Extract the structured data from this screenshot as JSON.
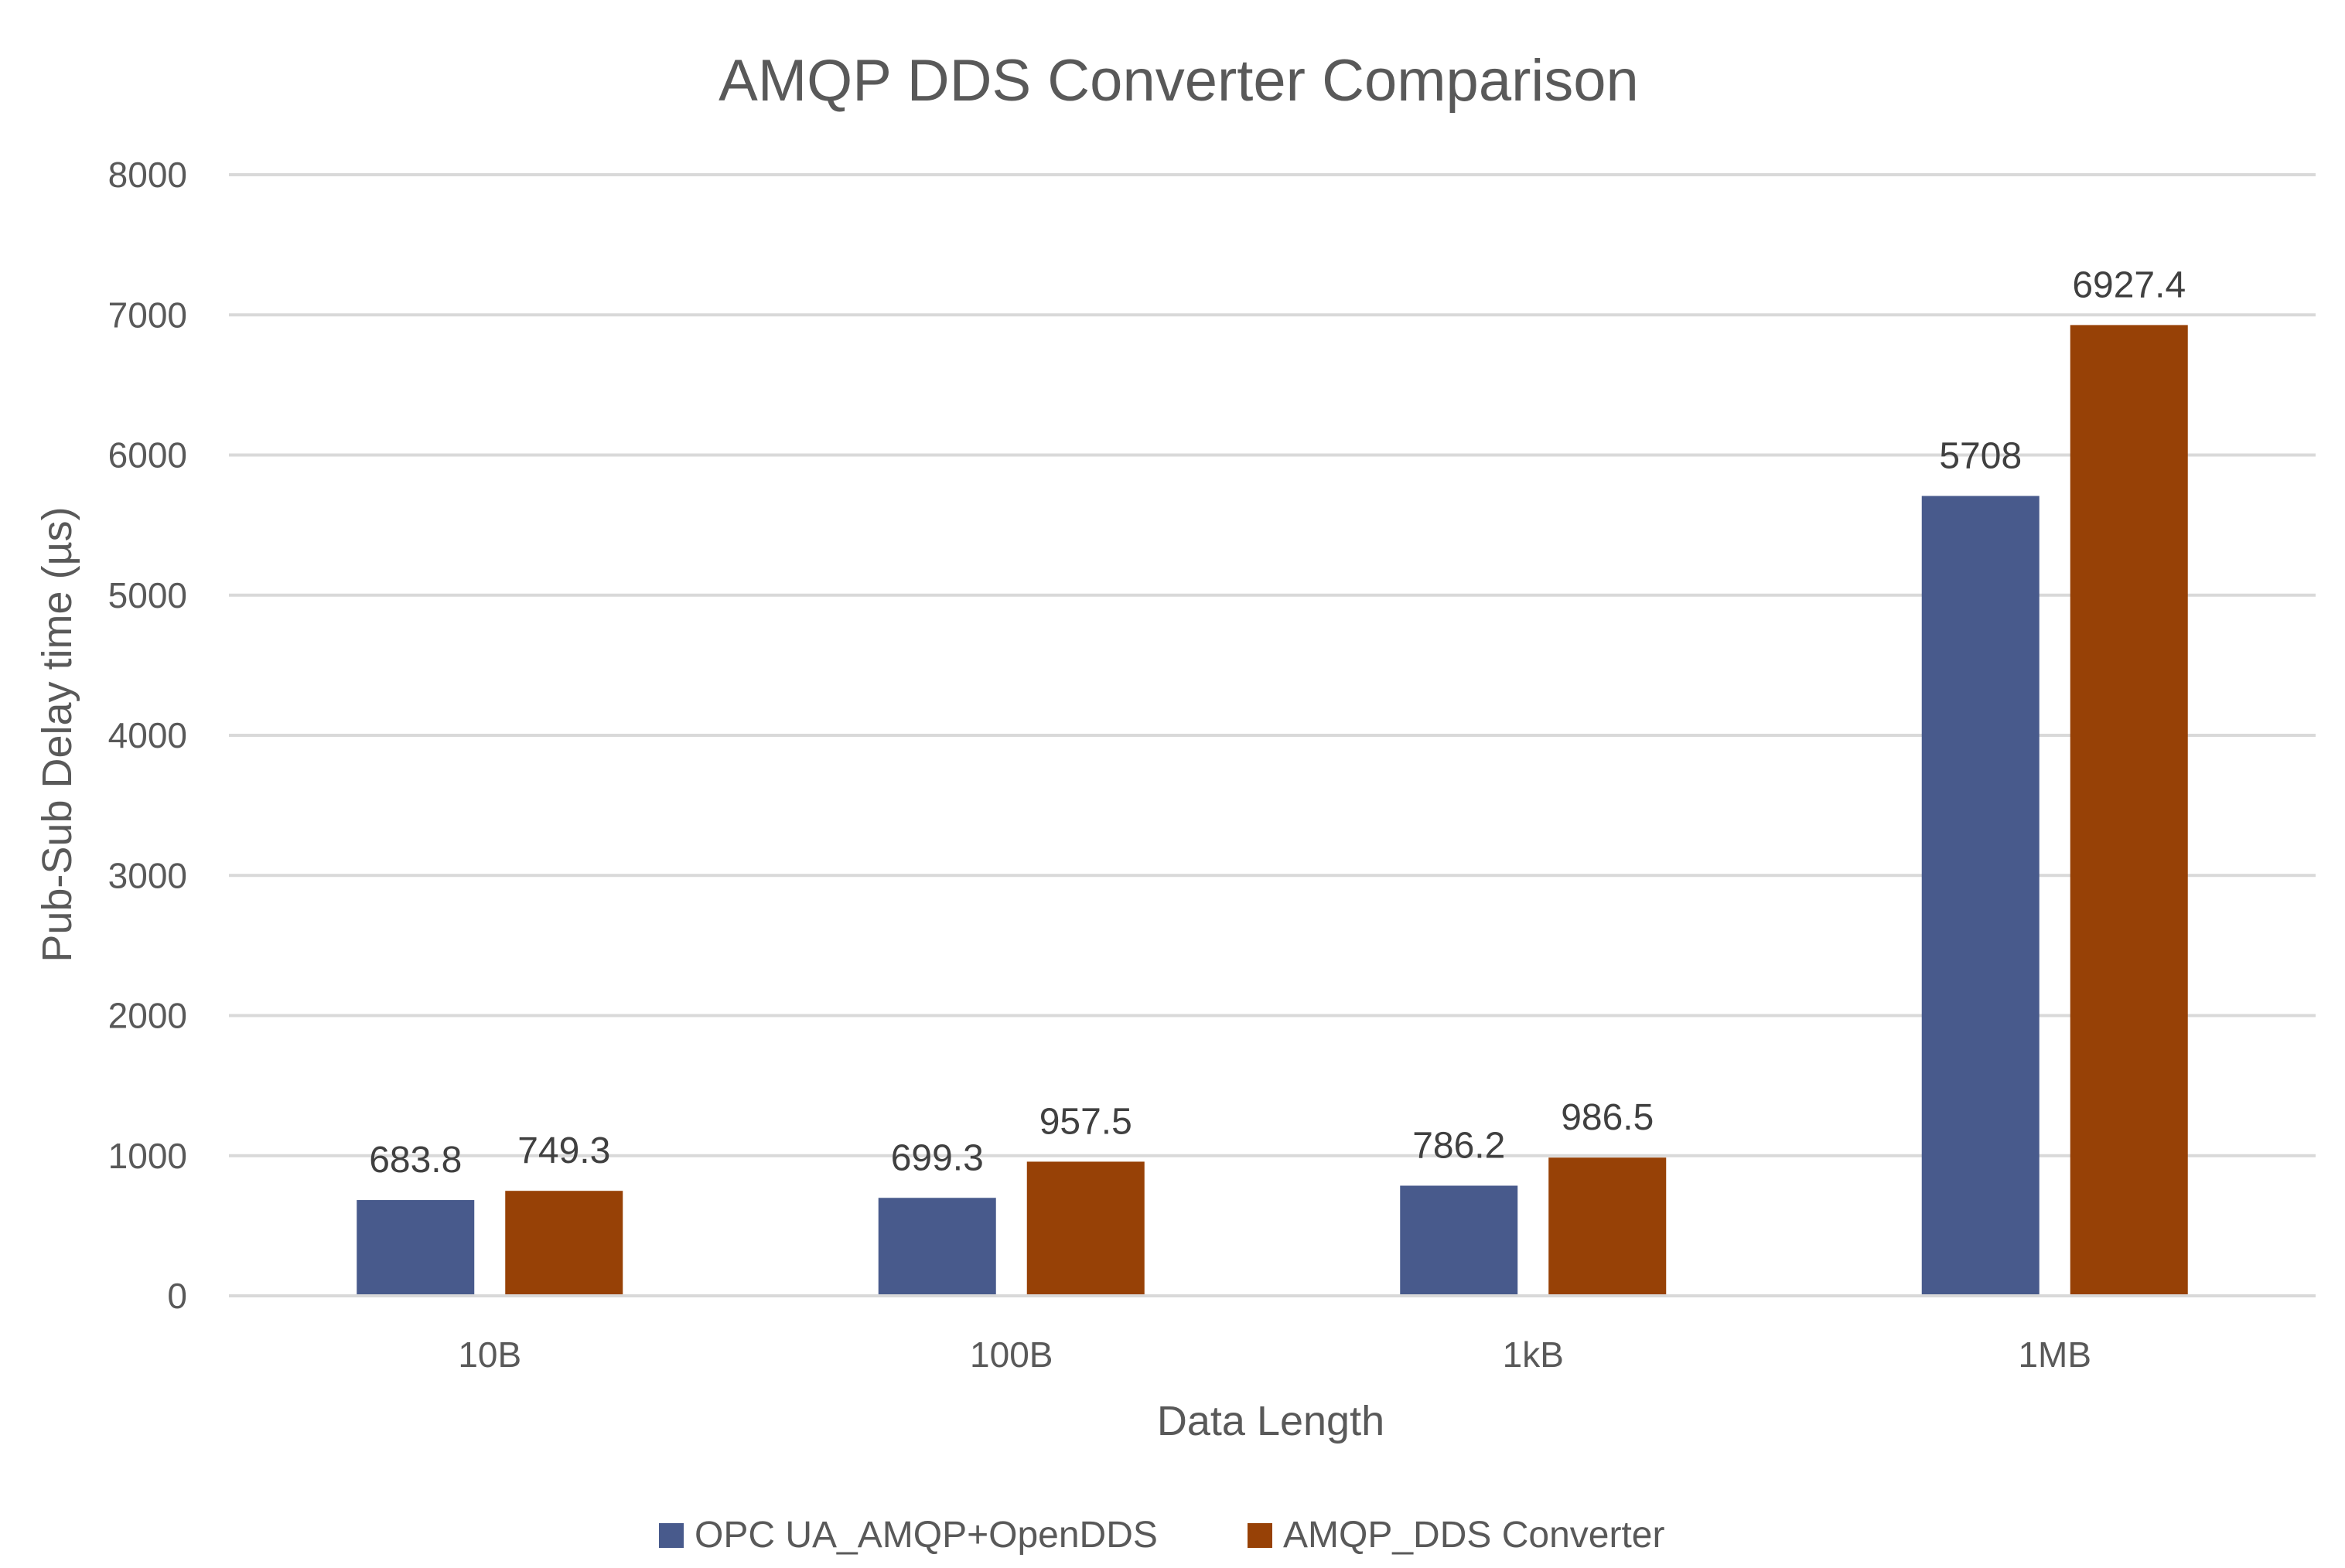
{
  "chart_data": {
    "type": "bar",
    "title": "AMQP DDS Converter Comparison",
    "xlabel": "Data Length",
    "ylabel": "Pub-Sub Delay time (µs)",
    "categories": [
      "10B",
      "100B",
      "1kB",
      "1MB"
    ],
    "ylim": [
      0,
      8000
    ],
    "yticks": [
      0,
      1000,
      2000,
      3000,
      4000,
      5000,
      6000,
      7000,
      8000
    ],
    "grid": true,
    "legend_position": "bottom",
    "series": [
      {
        "name": "OPC UA_AMQP+OpenDDS",
        "color": "#485a8c",
        "values": [
          683.8,
          699.3,
          786.2,
          5708
        ],
        "labels": [
          "683.8",
          "699.3",
          "786.2",
          "5708"
        ]
      },
      {
        "name": "AMQP_DDS Converter",
        "color": "#974106",
        "values": [
          749.3,
          957.5,
          986.5,
          6927.4
        ],
        "labels": [
          "749.3",
          "957.5",
          "986.5",
          "6927.4"
        ]
      }
    ]
  }
}
